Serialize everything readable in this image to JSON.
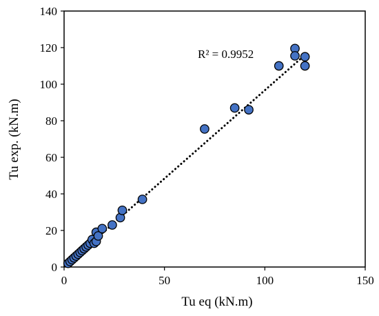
{
  "chart_data": {
    "type": "scatter",
    "title": "",
    "xlabel": "Tu eq (kN.m)",
    "ylabel": "Tu exp. (kN.m)",
    "xlim": [
      0,
      150
    ],
    "ylim": [
      0,
      140
    ],
    "xticks": [
      0,
      50,
      100,
      150
    ],
    "yticks": [
      0,
      20,
      40,
      60,
      80,
      100,
      120,
      140
    ],
    "grid": false,
    "legend": "none",
    "annotation": "R² = 0.9952",
    "marker_color": "#4472C4",
    "marker_edge_color": "#000000",
    "trendline": {
      "type": "linear",
      "style": "dotted",
      "color": "#000000",
      "x": [
        2,
        120
      ],
      "y": [
        2,
        116
      ]
    },
    "series": [
      {
        "x": [
          2,
          3,
          4,
          5,
          6,
          7,
          8,
          9,
          10,
          11,
          12,
          13,
          14,
          15,
          16,
          16,
          17,
          19,
          24,
          28,
          29,
          39,
          70,
          85,
          92,
          107,
          115,
          115,
          120,
          120
        ],
        "y": [
          2,
          3,
          4,
          5,
          6,
          7,
          8,
          9,
          10,
          11,
          12,
          13,
          15,
          13,
          14,
          19,
          17,
          21,
          23,
          27,
          31,
          37,
          75.5,
          87,
          86,
          110,
          119.5,
          115.5,
          115,
          110
        ]
      }
    ]
  }
}
